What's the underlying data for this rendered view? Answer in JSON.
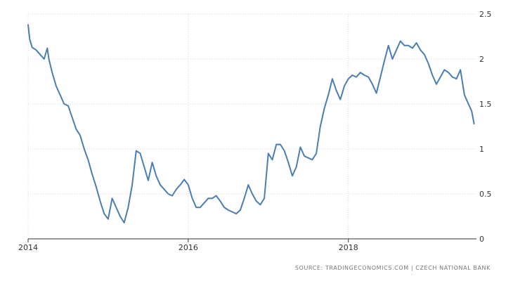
{
  "chart_data": {
    "type": "line",
    "title": "",
    "xlabel": "",
    "ylabel": "",
    "xlim": [
      2014.0,
      2019.6
    ],
    "ylim": [
      0,
      2.5
    ],
    "x_ticks": [
      {
        "value": 2014,
        "label": "2014"
      },
      {
        "value": 2016,
        "label": "2016"
      },
      {
        "value": 2018,
        "label": "2018"
      }
    ],
    "y_ticks": [
      {
        "value": 0,
        "label": "0"
      },
      {
        "value": 0.5,
        "label": "0.5"
      },
      {
        "value": 1,
        "label": "1"
      },
      {
        "value": 1.5,
        "label": "1.5"
      },
      {
        "value": 2,
        "label": "2"
      },
      {
        "value": 2.5,
        "label": "2.5"
      }
    ],
    "grid": true,
    "legend": "none",
    "series": [
      {
        "color": "#4a7eb2",
        "x": [
          2014.0,
          2014.02,
          2014.05,
          2014.1,
          2014.15,
          2014.2,
          2014.24,
          2014.26,
          2014.3,
          2014.35,
          2014.4,
          2014.45,
          2014.5,
          2014.55,
          2014.6,
          2014.65,
          2014.7,
          2014.75,
          2014.8,
          2014.85,
          2014.9,
          2014.95,
          2015.0,
          2015.05,
          2015.1,
          2015.15,
          2015.2,
          2015.25,
          2015.3,
          2015.35,
          2015.4,
          2015.45,
          2015.5,
          2015.55,
          2015.6,
          2015.65,
          2015.7,
          2015.75,
          2015.8,
          2015.85,
          2015.9,
          2015.95,
          2016.0,
          2016.05,
          2016.1,
          2016.15,
          2016.2,
          2016.25,
          2016.3,
          2016.35,
          2016.4,
          2016.45,
          2016.5,
          2016.55,
          2016.6,
          2016.65,
          2016.7,
          2016.75,
          2016.8,
          2016.85,
          2016.9,
          2016.95,
          2017.0,
          2017.05,
          2017.1,
          2017.15,
          2017.2,
          2017.25,
          2017.3,
          2017.35,
          2017.4,
          2017.45,
          2017.5,
          2017.55,
          2017.6,
          2017.65,
          2017.7,
          2017.75,
          2017.8,
          2017.85,
          2017.9,
          2017.95,
          2018.0,
          2018.05,
          2018.1,
          2018.15,
          2018.2,
          2018.25,
          2018.3,
          2018.35,
          2018.4,
          2018.45,
          2018.5,
          2018.55,
          2018.6,
          2018.65,
          2018.7,
          2018.75,
          2018.8,
          2018.85,
          2018.9,
          2018.95,
          2019.0,
          2019.05,
          2019.1,
          2019.15,
          2019.2,
          2019.25,
          2019.3,
          2019.35,
          2019.4,
          2019.45,
          2019.5,
          2019.54,
          2019.57
        ],
        "y": [
          2.38,
          2.22,
          2.13,
          2.1,
          2.05,
          2.0,
          2.12,
          2.0,
          1.85,
          1.7,
          1.6,
          1.5,
          1.48,
          1.35,
          1.22,
          1.15,
          1.0,
          0.88,
          0.72,
          0.58,
          0.42,
          0.28,
          0.22,
          0.45,
          0.35,
          0.25,
          0.18,
          0.35,
          0.6,
          0.98,
          0.95,
          0.8,
          0.65,
          0.85,
          0.7,
          0.6,
          0.55,
          0.5,
          0.48,
          0.55,
          0.6,
          0.66,
          0.6,
          0.45,
          0.35,
          0.35,
          0.4,
          0.45,
          0.45,
          0.48,
          0.42,
          0.35,
          0.32,
          0.3,
          0.28,
          0.32,
          0.45,
          0.6,
          0.5,
          0.42,
          0.38,
          0.45,
          0.95,
          0.88,
          1.05,
          1.05,
          0.98,
          0.85,
          0.7,
          0.8,
          1.02,
          0.92,
          0.9,
          0.88,
          0.95,
          1.25,
          1.45,
          1.6,
          1.78,
          1.65,
          1.55,
          1.7,
          1.78,
          1.82,
          1.8,
          1.85,
          1.82,
          1.8,
          1.72,
          1.62,
          1.8,
          1.98,
          2.15,
          2.0,
          2.1,
          2.2,
          2.15,
          2.15,
          2.12,
          2.18,
          2.1,
          2.05,
          1.95,
          1.82,
          1.72,
          1.8,
          1.88,
          1.85,
          1.8,
          1.78,
          1.88,
          1.6,
          1.5,
          1.42,
          1.28
        ]
      }
    ],
    "source": "SOURCE: TRADINGECONOMICS.COM | CZECH NATIONAL BANK"
  }
}
